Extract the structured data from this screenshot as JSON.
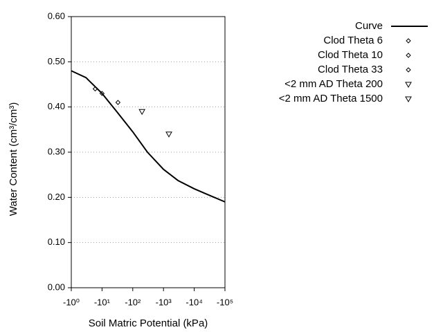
{
  "chart_data": {
    "type": "line",
    "x_label": "Soil Matric Potential (kPa)",
    "y_label": "Water Content (cm³/cm³)",
    "log_scale": true,
    "xlim": [
      -1,
      -100000
    ],
    "xticks": [
      {
        "value": -1,
        "label": "-10⁰"
      },
      {
        "value": -10,
        "label": "-10¹"
      },
      {
        "value": -100,
        "label": "-10²"
      },
      {
        "value": -1000,
        "label": "-10³"
      },
      {
        "value": -10000,
        "label": "-10⁴"
      },
      {
        "value": -100000,
        "label": "-10⁵"
      }
    ],
    "ylim": [
      0,
      0.6
    ],
    "yticks": [
      {
        "value": 0,
        "label": "0.00"
      },
      {
        "value": 0.1,
        "label": "0.10"
      },
      {
        "value": 0.2,
        "label": "0.20"
      },
      {
        "value": 0.3,
        "label": "0.30"
      },
      {
        "value": 0.4,
        "label": "0.40"
      },
      {
        "value": 0.5,
        "label": "0.50"
      },
      {
        "value": 0.6,
        "label": "0.60"
      }
    ],
    "grid": true,
    "legend": "top-right",
    "series": [
      {
        "name": "Curve",
        "type": "line",
        "color": "#000000",
        "x": [
          -1,
          -3,
          -10,
          -30,
          -100,
          -300,
          -1000,
          -3000,
          -10000,
          -30000,
          -100000
        ],
        "values": [
          0.48,
          0.465,
          0.43,
          0.39,
          0.345,
          0.3,
          0.262,
          0.237,
          0.219,
          0.205,
          0.19
        ]
      },
      {
        "name": "Clod Theta 6",
        "type": "scatter",
        "marker": "diamond",
        "color": "#000000",
        "x": [
          -6
        ],
        "values": [
          0.44
        ]
      },
      {
        "name": "Clod Theta 10",
        "type": "scatter",
        "marker": "diamond",
        "color": "#000000",
        "x": [
          -10
        ],
        "values": [
          0.43
        ]
      },
      {
        "name": "Clod Theta 33",
        "type": "scatter",
        "marker": "diamond",
        "color": "#000000",
        "x": [
          -33
        ],
        "values": [
          0.41
        ]
      },
      {
        "name": "<2 mm AD Theta 200",
        "type": "scatter",
        "marker": "triangle",
        "color": "#000000",
        "x": [
          -200
        ],
        "values": [
          0.39
        ]
      },
      {
        "name": "<2 mm AD Theta 1500",
        "type": "scatter",
        "marker": "triangle",
        "color": "#000000",
        "x": [
          -1500
        ],
        "values": [
          0.34
        ]
      }
    ]
  }
}
